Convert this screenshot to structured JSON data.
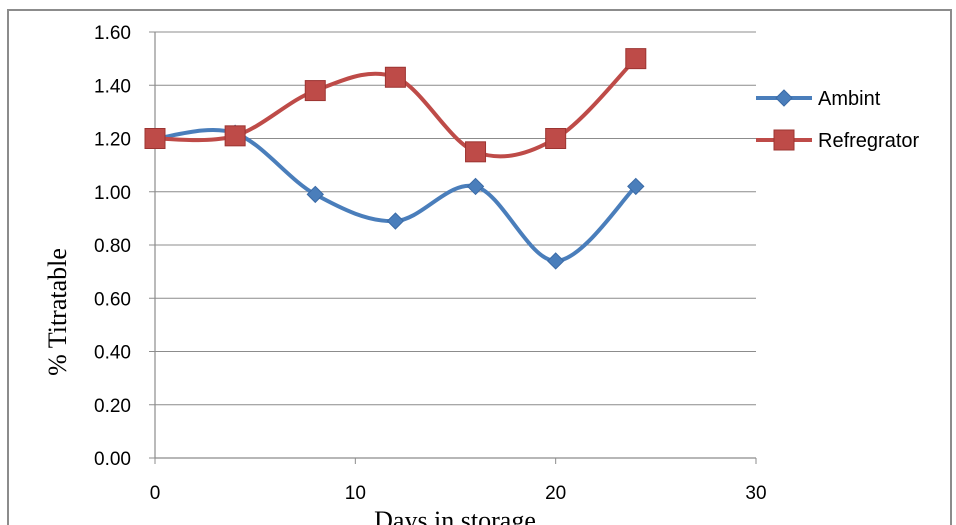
{
  "chart_data": {
    "type": "scatter",
    "title": "",
    "xlabel": "Days in storage",
    "ylabel": "% Titratable",
    "xlim": [
      0,
      30
    ],
    "ylim": [
      0,
      1.6
    ],
    "x_ticks": [
      "0",
      "10",
      "20",
      "30"
    ],
    "y_ticks": [
      "0.00",
      "0.20",
      "0.40",
      "0.60",
      "0.80",
      "1.00",
      "1.20",
      "1.40",
      "1.60"
    ],
    "grid": "horizontal",
    "legend": "right",
    "line_style": "smooth",
    "series": [
      {
        "name": "Ambint",
        "marker": "diamond",
        "color": "#4a7ebb",
        "x": [
          0,
          4,
          8,
          12,
          16,
          20,
          24
        ],
        "y": [
          1.2,
          1.22,
          0.99,
          0.89,
          1.02,
          0.74,
          1.02
        ]
      },
      {
        "name": "Refregrator",
        "marker": "square",
        "color": "#be4b48",
        "x": [
          0,
          4,
          8,
          12,
          16,
          20,
          24
        ],
        "y": [
          1.2,
          1.21,
          1.38,
          1.43,
          1.15,
          1.2,
          1.5
        ]
      }
    ]
  }
}
